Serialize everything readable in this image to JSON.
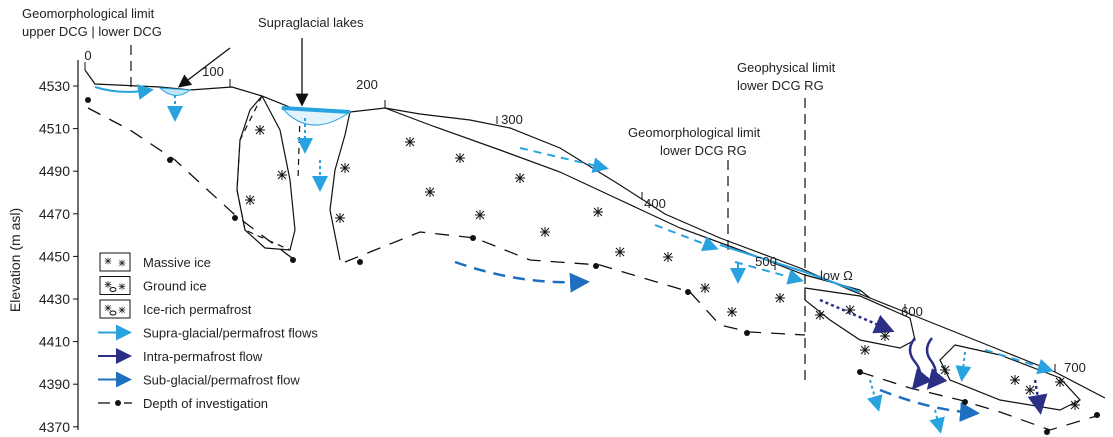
{
  "axis": {
    "label": "Elevation (m asl)",
    "ticks": [
      4530,
      4510,
      4490,
      4470,
      4450,
      4430,
      4410,
      4390,
      4370
    ]
  },
  "distance_ticks": [
    0,
    100,
    200,
    300,
    400,
    500,
    600,
    700
  ],
  "annotations": {
    "geomorph_limit_1": {
      "title": "Geomorphological limit",
      "sub": "upper DCG | lower DCG"
    },
    "lakes": "Supraglacial lakes",
    "geophys_limit": {
      "title": "Geophysical limit",
      "sub": "lower DCG RG"
    },
    "geomorph_limit_2": {
      "title": "Geomorphological limit",
      "sub": "lower DCG  RG"
    },
    "low_omega": "low Ω"
  },
  "legend": [
    "Massive ice",
    "Ground ice",
    "Ice-rich permafrost",
    "Supra-glacial/permafrost flows",
    "Intra-permafrost flow",
    "Sub-glacial/permafrost flow",
    "Depth of investigation"
  ]
}
